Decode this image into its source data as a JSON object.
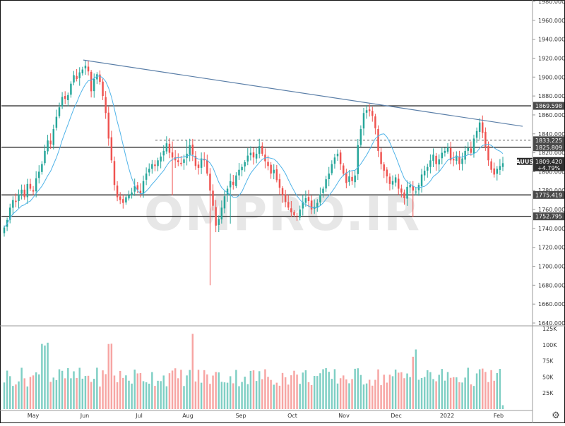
{
  "chart_data": {
    "type": "candlestick",
    "symbol": "XAUUSD",
    "last_price": "1809.420",
    "change": "+4.79%",
    "watermark": "OMPRO.IR",
    "price_axis": {
      "ylim": [
        1640,
        1980
      ],
      "ticks": [
        "1980.000",
        "1960.000",
        "1940.000",
        "1920.000",
        "1900.000",
        "1880.000",
        "1860.000",
        "1840.000",
        "1820.000",
        "1800.000",
        "1780.000",
        "1760.000",
        "1740.000",
        "1720.000",
        "1700.000",
        "1680.000",
        "1660.000",
        "1640.000"
      ]
    },
    "volume_axis": {
      "ylim": [
        0,
        125000
      ],
      "ticks": [
        "125K",
        "100K",
        "75K",
        "50K",
        "25K"
      ]
    },
    "x_labels": [
      "May",
      "Jun",
      "Jul",
      "Aug",
      "Sep",
      "Oct",
      "Nov",
      "Dec",
      "2022",
      "Feb"
    ],
    "horizontal_levels": [
      {
        "price": 1869.598,
        "label": "1869.598"
      },
      {
        "price": 1833.225,
        "label": "1833.225",
        "style": "dashed"
      },
      {
        "price": 1825.809,
        "label": "1825.809"
      },
      {
        "price": 1775.419,
        "label": "1775.419"
      },
      {
        "price": 1752.795,
        "label": "1752.795"
      }
    ],
    "trendline": {
      "from_price": 1918,
      "to_price": 1848
    },
    "colors": {
      "up": "#26a69a",
      "down": "#ef5350",
      "up_volume": "#7fcfc4",
      "down_volume": "#f7a5a3",
      "ma": "#4fb3e8",
      "trendline": "#5b7fa8",
      "level": "#2b2b2b",
      "label_bg": "#4a4a4a",
      "symbol_bg": "#2f2f2f"
    },
    "closes": [
      1741,
      1749,
      1762,
      1770,
      1768,
      1776,
      1781,
      1773,
      1787,
      1782,
      1779,
      1793,
      1800,
      1808,
      1822,
      1833,
      1829,
      1845,
      1858,
      1868,
      1879,
      1877,
      1881,
      1893,
      1902,
      1898,
      1905,
      1908,
      1912,
      1906,
      1885,
      1898,
      1903,
      1895,
      1880,
      1862,
      1835,
      1812,
      1786,
      1773,
      1770,
      1767,
      1773,
      1775,
      1778,
      1785,
      1781,
      1777,
      1790,
      1798,
      1803,
      1808,
      1806,
      1812,
      1816,
      1822,
      1830,
      1820,
      1815,
      1812,
      1810,
      1808,
      1813,
      1819,
      1828,
      1818,
      1806,
      1804,
      1814,
      1812,
      1798,
      1780,
      1764,
      1743,
      1750,
      1762,
      1774,
      1782,
      1790,
      1786,
      1796,
      1802,
      1805,
      1810,
      1817,
      1820,
      1815,
      1819,
      1827,
      1819,
      1811,
      1806,
      1798,
      1802,
      1791,
      1783,
      1775,
      1768,
      1762,
      1757,
      1754,
      1752,
      1760,
      1768,
      1772,
      1769,
      1760,
      1763,
      1767,
      1776,
      1782,
      1792,
      1798,
      1808,
      1815,
      1819,
      1808,
      1798,
      1788,
      1795,
      1790,
      1796,
      1828,
      1845,
      1862,
      1865,
      1864,
      1859,
      1846,
      1822,
      1808,
      1801,
      1795,
      1787,
      1790,
      1794,
      1782,
      1778,
      1772,
      1784,
      1786,
      1780,
      1779,
      1786,
      1797,
      1801,
      1805,
      1812,
      1818,
      1808,
      1813,
      1820,
      1822,
      1826,
      1812,
      1812,
      1817,
      1808,
      1814,
      1822,
      1825,
      1820,
      1835,
      1843,
      1852,
      1841,
      1826,
      1812,
      1802,
      1797,
      1803,
      1806,
      1809
    ]
  }
}
